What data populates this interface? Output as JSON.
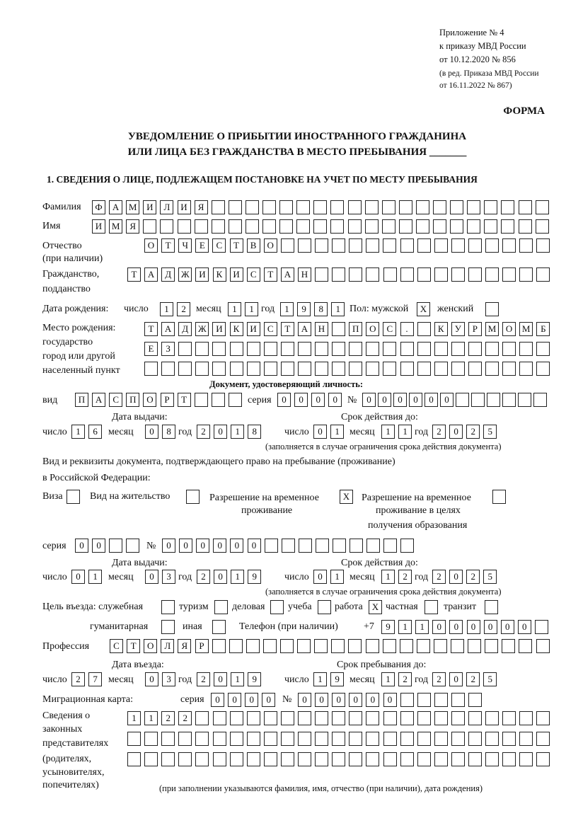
{
  "header": {
    "appendix": "Приложение № 4",
    "order": "к приказу МВД России",
    "order_date": "от 10.12.2020 № 856",
    "revision1": "(в ред. Приказа МВД России",
    "revision2": "от 16.11.2022 № 867)",
    "form_label": "ФОРМА",
    "title1": "УВЕДОМЛЕНИЕ О ПРИБЫТИИ ИНОСТРАННОГО ГРАЖДАНИНА",
    "title2": "ИЛИ ЛИЦА БЕЗ ГРАЖДАНСТВА В МЕСТО ПРЕБЫВАНИЯ _______"
  },
  "section1": {
    "heading": "1. СВЕДЕНИЯ О ЛИЦЕ, ПОДЛЕЖАЩЕМ ПОСТАНОВКЕ НА УЧЕТ ПО МЕСТУ ПРЕБЫВАНИЯ",
    "labels": {
      "surname": "Фамилия",
      "name": "Имя",
      "patronymic": "Отчество",
      "patronymic_note": "(при наличии)",
      "citizenship": "Гражданство,",
      "citizenship2": "подданство",
      "birth_date": "Дата рождения:",
      "day": "число",
      "month": "месяц",
      "year": "год",
      "sex": "Пол: мужской",
      "female": "женский",
      "birthplace1": "Место рождения:",
      "birthplace2": "государство",
      "birthplace3": "город или другой",
      "birthplace4": "населенный пункт",
      "id_doc": "Документ, удостоверяющий личность:",
      "kind": "вид",
      "series": "серия",
      "number": "№",
      "issue_date": "Дата выдачи:",
      "valid_until": "Срок действия до:",
      "valid_note": "(заполняется в случае ограничения срока действия документа)",
      "stay_doc1": "Вид и реквизиты документа, подтверждающего право на пребывание (проживание)",
      "stay_doc2": "в Российской Федерации:",
      "visa": "Виза",
      "residence": "Вид на жительство",
      "temp_res1": "Разрешение на временное",
      "temp_res2": "проживание",
      "temp_edu1": "Разрешение на временное",
      "temp_edu2": "проживание в целях",
      "temp_edu3": "получения образования",
      "purpose": "Цель въезда: служебная",
      "tourism": "туризм",
      "business": "деловая",
      "study": "учеба",
      "work": "работа",
      "private": "частная",
      "transit": "транзит",
      "humanitarian": "гуманитарная",
      "other": "иная",
      "phone": "Телефон (при наличии)",
      "phone_prefix": "+7",
      "profession": "Профессия",
      "entry_date": "Дата въезда:",
      "stay_until": "Срок пребывания до:",
      "migration_card": "Миграционная карта:",
      "reps1": "Сведения о",
      "reps2": "законных",
      "reps3": "представителях",
      "reps4": "(родителях,",
      "reps5": "усыновителях,",
      "reps6": "попечителях)",
      "reps_note": "(при заполнении указываются фамилия, имя, отчество (при наличии), дата рождения)"
    },
    "values": {
      "surname": "ФАМИЛИЯ",
      "name": "ИМЯ",
      "patronymic": "ОТЧЕСТВО",
      "citizenship": "ТАДЖИКИСТАН",
      "birth_day": "12",
      "birth_month": "11",
      "birth_year": "1981",
      "sex_male": "X",
      "sex_female": "",
      "birthplace_line1": "ТАДЖИКИСТАН ПОС. КУРМОМБ",
      "birthplace_line2": "ЕЗ",
      "birthplace_line3": "",
      "id_kind": "ПАСПОРТ",
      "id_series": "0000",
      "id_number": "000000",
      "id_issue_day": "16",
      "id_issue_month": "08",
      "id_issue_year": "2018",
      "id_valid_day": "01",
      "id_valid_month": "11",
      "id_valid_year": "2025",
      "visa": "",
      "residence": "",
      "temp_res": "X",
      "temp_edu": "",
      "stay_series": "00",
      "stay_number": "000000",
      "stay_issue_day": "01",
      "stay_issue_month": "03",
      "stay_issue_year": "2019",
      "stay_valid_day": "01",
      "stay_valid_month": "12",
      "stay_valid_year": "2025",
      "purpose_service": "",
      "purpose_tourism": "",
      "purpose_business": "",
      "purpose_study": "",
      "purpose_work": "X",
      "purpose_private": "",
      "purpose_transit": "",
      "purpose_humanitarian": "",
      "purpose_other": "",
      "phone": "911000000",
      "profession": "СТОЛЯР",
      "entry_day": "27",
      "entry_month": "03",
      "entry_year": "2019",
      "stay_until_day": "19",
      "stay_until_month": "12",
      "stay_until_year": "2025",
      "mig_series": "0000",
      "mig_number": "000000",
      "reps_line1": "1122",
      "reps_line2": "",
      "reps_line3": ""
    }
  }
}
